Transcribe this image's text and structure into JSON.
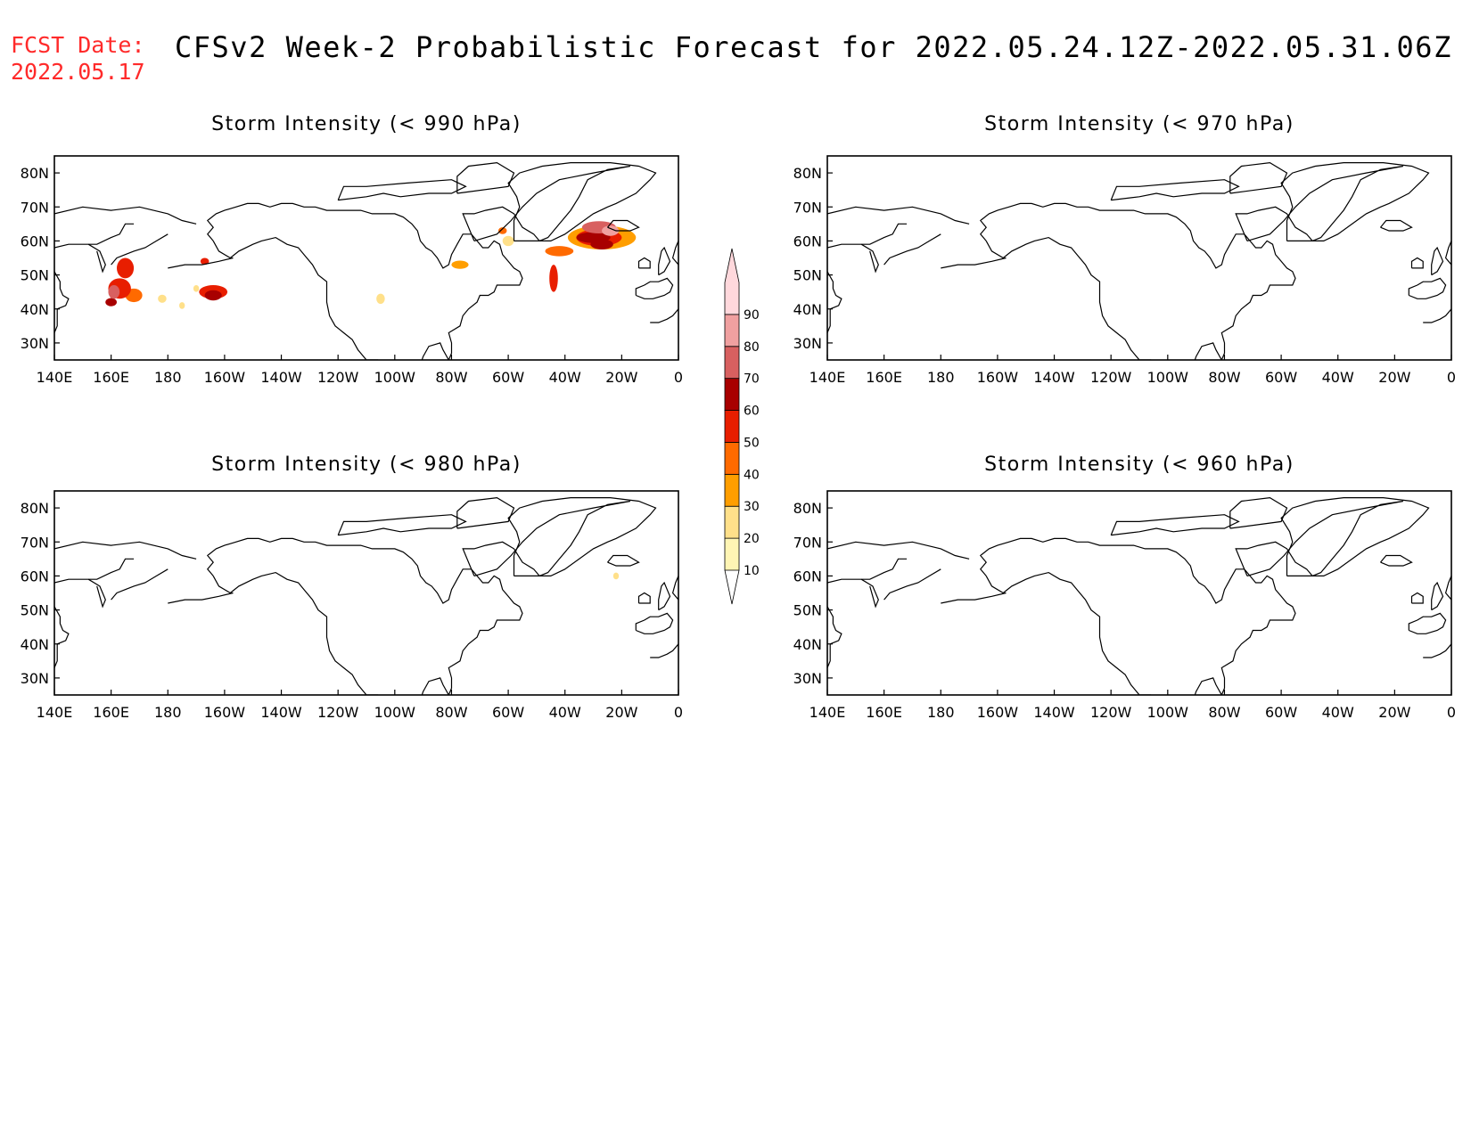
{
  "header": {
    "fcst_label": "FCST Date:",
    "fcst_date": "2022.05.17",
    "title": "CFSv2 Week-2 Probabilistic Forecast for 2022.05.24.12Z-2022.05.31.06Z",
    "label_color": "#ff2a2a"
  },
  "axes": {
    "lon_ticks": [
      "140E",
      "160E",
      "180",
      "160W",
      "140W",
      "120W",
      "100W",
      "80W",
      "60W",
      "40W",
      "20W",
      "0"
    ],
    "lat_ticks": [
      "80N",
      "70N",
      "60N",
      "50N",
      "40N",
      "30N"
    ]
  },
  "colorbar": {
    "levels": [
      "10",
      "20",
      "30",
      "40",
      "50",
      "60",
      "70",
      "80",
      "90"
    ],
    "colors": [
      "#fff5b4",
      "#ffe08a",
      "#ff9e00",
      "#ff6a00",
      "#e81e00",
      "#a80000",
      "#d86060",
      "#f0a0a0",
      "#ffd8dc"
    ]
  },
  "panels": [
    {
      "id": "p990",
      "title": "Storm Intensity (< 990 hPa)",
      "blobs": [
        {
          "lon": 165,
          "lat": 52,
          "rx": 3,
          "ry": 3,
          "level": 4
        },
        {
          "lon": 163,
          "lat": 46,
          "rx": 4,
          "ry": 3,
          "level": 4
        },
        {
          "lon": 161,
          "lat": 45,
          "rx": 2,
          "ry": 2,
          "level": 6
        },
        {
          "lon": 160,
          "lat": 42,
          "rx": 2,
          "ry": 1.2,
          "level": 5
        },
        {
          "lon": 168,
          "lat": 44,
          "rx": 3,
          "ry": 2,
          "level": 3
        },
        {
          "lon": 178,
          "lat": 43,
          "rx": 1.5,
          "ry": 1.2,
          "level": 1
        },
        {
          "lon": 185,
          "lat": 41,
          "rx": 1,
          "ry": 1,
          "level": 1
        },
        {
          "lon": 190,
          "lat": 46,
          "rx": 1,
          "ry": 1,
          "level": 1
        },
        {
          "lon": 193,
          "lat": 54,
          "rx": 1.5,
          "ry": 1,
          "level": 4
        },
        {
          "lon": 196,
          "lat": 45,
          "rx": 5,
          "ry": 2,
          "level": 4
        },
        {
          "lon": 196,
          "lat": 44,
          "rx": 3,
          "ry": 1.5,
          "level": 5
        },
        {
          "lon": 255,
          "lat": 43,
          "rx": 1.5,
          "ry": 1.5,
          "level": 1
        },
        {
          "lon": 283,
          "lat": 53,
          "rx": 3,
          "ry": 1.2,
          "level": 2
        },
        {
          "lon": 300,
          "lat": 60,
          "rx": 2,
          "ry": 1.5,
          "level": 1
        },
        {
          "lon": 298,
          "lat": 63,
          "rx": 1.5,
          "ry": 1,
          "level": 3
        },
        {
          "lon": 318,
          "lat": 57,
          "rx": 5,
          "ry": 1.5,
          "level": 3
        },
        {
          "lon": 316,
          "lat": 49,
          "rx": 1.5,
          "ry": 4,
          "level": 4
        },
        {
          "lon": 333,
          "lat": 61,
          "rx": 12,
          "ry": 3.5,
          "level": 2
        },
        {
          "lon": 332,
          "lat": 61,
          "rx": 8,
          "ry": 2.5,
          "level": 4
        },
        {
          "lon": 330,
          "lat": 61,
          "rx": 6,
          "ry": 1.6,
          "level": 5
        },
        {
          "lon": 332,
          "lat": 64,
          "rx": 6,
          "ry": 1.8,
          "level": 6
        },
        {
          "lon": 333,
          "lat": 59,
          "rx": 4,
          "ry": 1.5,
          "level": 5
        },
        {
          "lon": 336,
          "lat": 63,
          "rx": 3,
          "ry": 1.5,
          "level": 7
        }
      ]
    },
    {
      "id": "p970",
      "title": "Storm Intensity (< 970 hPa)",
      "blobs": []
    },
    {
      "id": "p980",
      "title": "Storm Intensity (< 980 hPa)",
      "blobs": [
        {
          "lon": 338,
          "lat": 60,
          "rx": 1,
          "ry": 1,
          "level": 1
        }
      ]
    },
    {
      "id": "p960",
      "title": "Storm Intensity (< 960 hPa)",
      "blobs": []
    }
  ]
}
